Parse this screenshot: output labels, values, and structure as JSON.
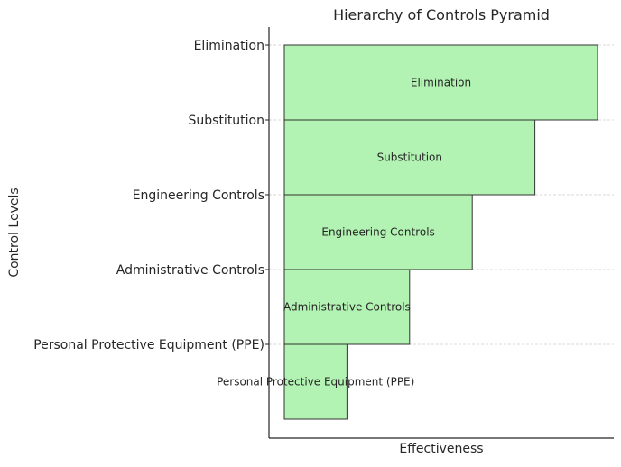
{
  "chart_data": {
    "type": "bar",
    "orientation": "horizontal",
    "title": "Hierarchy of Controls Pyramid",
    "xlabel": "Effectiveness",
    "ylabel": "Control Levels",
    "categories": [
      "Elimination",
      "Substitution",
      "Engineering Controls",
      "Administrative Controls",
      "Personal Protective Equipment (PPE)"
    ],
    "values": [
      5,
      4,
      3,
      2,
      1
    ],
    "bar_labels": [
      "Elimination",
      "Substitution",
      "Engineering Controls",
      "Administrative Controls",
      "Personal Protective Equipment (PPE)"
    ],
    "xlim": [
      0,
      5.5
    ],
    "grid": "horizontal dashed",
    "bar_color": "#b2f2b2",
    "edge_color": "#333333"
  }
}
